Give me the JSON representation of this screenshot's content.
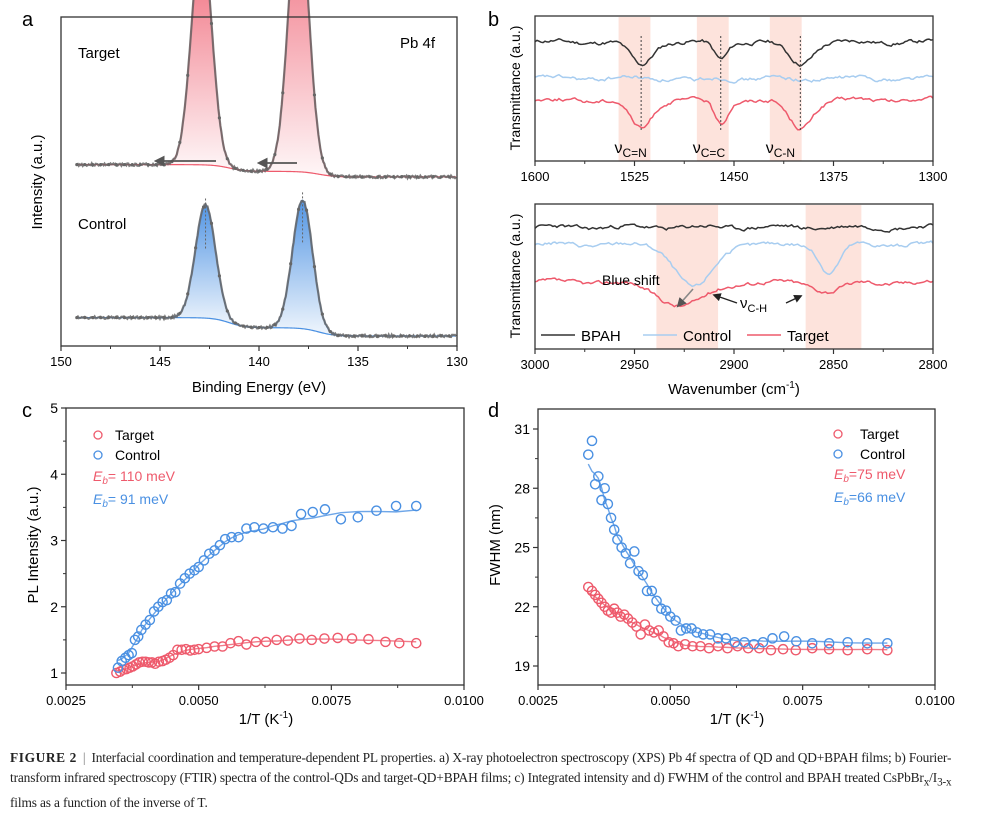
{
  "figure": {
    "caption": {
      "label": "FIGURE 2",
      "separator": "|",
      "text_part1": "Interfacial coordination and temperature-dependent PL properties. a) X-ray photoelectron spectroscopy (XPS) Pb 4f spectra of QD and QD+BPAH films; b) Fourier-transform infrared spectroscopy (FTIR) spectra of the control-QDs and target-QD+BPAH films; c) Integrated intensity and d) FWHM of the control and BPAH treated CsPbBr",
      "sub_x": "x",
      "slash": "/I",
      "sub_3x": "3-x",
      "text_part2": " films as a function of the inverse of T."
    },
    "colors": {
      "target": "#ee5a6c",
      "control": "#4a90e2",
      "control_light": "#a8cdf0",
      "bpah": "#333333",
      "data_points": "#666666",
      "band": "#fde3dc"
    }
  },
  "chart_data": [
    {
      "panel": "a",
      "type": "line",
      "title": "Pb 4f",
      "xlabel": "Binding Energy (eV)",
      "ylabel": "Intensity (a.u.)",
      "xlim": [
        150,
        130
      ],
      "xticks": [
        "150",
        "145",
        "140",
        "135",
        "130"
      ],
      "xtick_values": [
        150,
        145,
        140,
        135,
        130
      ],
      "series": [
        {
          "name": "Target",
          "peaks_eV": [
            142.9,
            138.0
          ],
          "peak_heights": [
            0.75,
            0.88
          ],
          "fwhm_eV": 1.2,
          "baseline_left": 0.56,
          "baseline_right": 0.52,
          "label_text": "Target"
        },
        {
          "name": "Control",
          "peaks_eV": [
            142.7,
            137.8
          ],
          "peak_heights": [
            0.37,
            0.42
          ],
          "fwhm_eV": 1.2,
          "baseline_left": 0.06,
          "baseline_right": 0.0,
          "label_text": "Control"
        }
      ],
      "annotations": [
        "arrows pointing to higher binding energy under Target peaks"
      ]
    },
    {
      "panel": "b-top",
      "type": "line",
      "ylabel": "Transmittance (a.u.)",
      "xlim": [
        1600,
        1300
      ],
      "xticks": [
        "1600",
        "1525",
        "1450",
        "1375",
        "1300"
      ],
      "xtick_values": [
        1600,
        1525,
        1450,
        1375,
        1300
      ],
      "bands": [
        [
          1537,
          1513
        ],
        [
          1478,
          1454
        ],
        [
          1423,
          1399
        ]
      ],
      "band_labels": [
        {
          "main": "ν",
          "sub": "C=N",
          "x": 1525
        },
        {
          "main": "ν",
          "sub": "C=C",
          "x": 1466
        },
        {
          "main": "ν",
          "sub": "C-N",
          "x": 1411
        }
      ],
      "dip_positions": [
        1520,
        1460,
        1400
      ],
      "series": [
        {
          "name": "BPAH",
          "offset": 0.82,
          "dips": [
            [
              1520,
              0.16,
              8
            ],
            [
              1460,
              0.12,
              5
            ],
            [
              1400,
              0.15,
              9
            ]
          ]
        },
        {
          "name": "Control",
          "offset": 0.57,
          "dips": [
            [
              1480,
              0.02,
              6
            ],
            [
              1400,
              0.01,
              6
            ]
          ]
        },
        {
          "name": "Target",
          "offset": 0.42,
          "dips": [
            [
              1520,
              0.2,
              8
            ],
            [
              1460,
              0.17,
              5
            ],
            [
              1400,
              0.19,
              9
            ]
          ]
        }
      ]
    },
    {
      "panel": "b-bottom",
      "type": "line",
      "xlabel": "Wavenumber (cm⁻¹)",
      "xlabel_main": "Wavenumber (cm",
      "xlabel_sup": "-1",
      "xlabel_end": ")",
      "ylabel": "Transmittance (a.u.)",
      "xlim": [
        3000,
        2800
      ],
      "xticks": [
        "3000",
        "2950",
        "2900",
        "2850",
        "2800"
      ],
      "xtick_values": [
        3000,
        2950,
        2900,
        2850,
        2800
      ],
      "bands": [
        [
          2939,
          2908
        ],
        [
          2864,
          2836
        ]
      ],
      "annotations": {
        "blue_shift": "Blue shift",
        "vch_main": "ν",
        "vch_sub": "C-H"
      },
      "series": [
        {
          "name": "BPAH",
          "offset": 0.84,
          "dips": []
        },
        {
          "name": "Control",
          "offset": 0.72,
          "dips": [
            [
              2920,
              0.3,
              9
            ],
            [
              2852,
              0.19,
              5
            ]
          ]
        },
        {
          "name": "Target",
          "offset": 0.46,
          "dips": [
            [
              2926,
              0.16,
              12
            ],
            [
              2852,
              0.06,
              7
            ]
          ]
        }
      ],
      "legend": [
        "BPAH",
        "Control",
        "Target"
      ],
      "legend_position": "bottom-left"
    },
    {
      "panel": "c",
      "type": "scatter",
      "xlabel": "1/T (K⁻¹)",
      "xlabel_main": "1/T (K",
      "xlabel_sup": "-1",
      "xlabel_end": ")",
      "ylabel": "PL Intensity (a.u.)",
      "xlim": [
        0.0025,
        0.01
      ],
      "ylim": [
        0.82,
        5
      ],
      "xticks": [
        "0.0025",
        "0.0050",
        "0.0075",
        "0.0100"
      ],
      "xtick_values": [
        0.0025,
        0.005,
        0.0075,
        0.01
      ],
      "yticks": [
        "1",
        "2",
        "3",
        "4",
        "5"
      ],
      "ytick_values": [
        1,
        2,
        3,
        4,
        5
      ],
      "legend": {
        "target": "Target",
        "control": "Control",
        "eb_target_value": "= 110 meV",
        "eb_control_value": "= 91 meV",
        "eb_symbol": "E",
        "eb_sub": "b"
      },
      "legend_position": "top-left",
      "series": [
        {
          "name": "Target",
          "x": [
            0.00345,
            0.00352,
            0.00358,
            0.00364,
            0.0037,
            0.00376,
            0.00382,
            0.00388,
            0.00394,
            0.004,
            0.00406,
            0.00412,
            0.00418,
            0.00425,
            0.00432,
            0.00438,
            0.00445,
            0.00452,
            0.0046,
            0.00468,
            0.00476,
            0.00484,
            0.00492,
            0.005,
            0.00515,
            0.0053,
            0.00545,
            0.0056,
            0.00575,
            0.0059,
            0.00608,
            0.00627,
            0.00647,
            0.00668,
            0.0069,
            0.00713,
            0.00737,
            0.00762,
            0.00789,
            0.0082,
            0.00852,
            0.00878,
            0.0091
          ],
          "y": [
            1.0,
            1.02,
            1.05,
            1.06,
            1.08,
            1.1,
            1.13,
            1.16,
            1.17,
            1.17,
            1.16,
            1.16,
            1.14,
            1.17,
            1.18,
            1.2,
            1.23,
            1.27,
            1.35,
            1.35,
            1.36,
            1.34,
            1.35,
            1.36,
            1.38,
            1.4,
            1.4,
            1.45,
            1.48,
            1.43,
            1.47,
            1.47,
            1.5,
            1.49,
            1.52,
            1.5,
            1.52,
            1.53,
            1.52,
            1.51,
            1.47,
            1.45,
            1.45
          ]
        },
        {
          "name": "Control",
          "x": [
            0.00348,
            0.00355,
            0.00362,
            0.00368,
            0.00374,
            0.0038,
            0.00386,
            0.00392,
            0.004,
            0.00408,
            0.00416,
            0.00424,
            0.00432,
            0.0044,
            0.00448,
            0.00456,
            0.00465,
            0.00474,
            0.00483,
            0.00492,
            0.005,
            0.0051,
            0.0052,
            0.0053,
            0.0054,
            0.0055,
            0.00562,
            0.00575,
            0.0059,
            0.00605,
            0.00622,
            0.0064,
            0.00658,
            0.00675,
            0.00693,
            0.00715,
            0.00738,
            0.00768,
            0.008,
            0.00835,
            0.00872,
            0.0091
          ],
          "y": [
            1.08,
            1.18,
            1.23,
            1.27,
            1.3,
            1.5,
            1.55,
            1.65,
            1.73,
            1.8,
            1.93,
            2.0,
            2.07,
            2.1,
            2.2,
            2.22,
            2.35,
            2.43,
            2.5,
            2.55,
            2.6,
            2.7,
            2.8,
            2.85,
            2.93,
            3.02,
            3.05,
            3.05,
            3.18,
            3.2,
            3.18,
            3.2,
            3.18,
            3.22,
            3.4,
            3.43,
            3.47,
            3.32,
            3.35,
            3.45,
            3.52,
            3.52
          ]
        }
      ]
    },
    {
      "panel": "d",
      "type": "scatter",
      "xlabel": "1/T (K⁻¹)",
      "xlabel_main": "1/T (K",
      "xlabel_sup": "-1",
      "xlabel_end": ")",
      "ylabel": "FWHM (nm)",
      "xlim": [
        0.0025,
        0.01
      ],
      "ylim": [
        17.8,
        32
      ],
      "xticks": [
        "0.0025",
        "0.0050",
        "0.0075",
        "0.0100"
      ],
      "xtick_values": [
        0.0025,
        0.005,
        0.0075,
        0.01
      ],
      "yticks": [
        "19",
        "22",
        "25",
        "28",
        "31"
      ],
      "ytick_values": [
        19,
        22,
        25,
        28,
        31
      ],
      "legend": {
        "target": "Target",
        "control": "Control",
        "eb_target_value": "=75 meV",
        "eb_control_value": "=66 meV",
        "eb_symbol": "E",
        "eb_sub": "b"
      },
      "legend_position": "top-right",
      "series": [
        {
          "name": "Target",
          "x": [
            0.00345,
            0.00352,
            0.00358,
            0.00364,
            0.0037,
            0.00376,
            0.00382,
            0.00388,
            0.00394,
            0.004,
            0.00406,
            0.00413,
            0.0042,
            0.00428,
            0.00436,
            0.00444,
            0.00452,
            0.0046,
            0.00469,
            0.00478,
            0.00487,
            0.00497,
            0.00506,
            0.00515,
            0.00528,
            0.00542,
            0.00557,
            0.00573,
            0.0059,
            0.00608,
            0.00627,
            0.00647,
            0.00668,
            0.0069,
            0.00713,
            0.00737,
            0.00768,
            0.008,
            0.00835,
            0.00872,
            0.0091
          ],
          "y": [
            23.0,
            22.8,
            22.6,
            22.4,
            22.2,
            22.0,
            21.8,
            21.7,
            21.9,
            21.7,
            21.5,
            21.6,
            21.4,
            21.2,
            21.0,
            20.6,
            21.1,
            20.8,
            20.7,
            20.8,
            20.5,
            20.2,
            20.15,
            20.0,
            20.1,
            20.0,
            20.0,
            19.9,
            20.0,
            19.9,
            20.0,
            19.9,
            19.9,
            19.8,
            19.85,
            19.8,
            19.9,
            19.85,
            19.8,
            19.85,
            19.8
          ]
        },
        {
          "name": "Control",
          "x": [
            0.00345,
            0.00352,
            0.00358,
            0.00364,
            0.0037,
            0.00376,
            0.00382,
            0.00388,
            0.00394,
            0.004,
            0.00408,
            0.00416,
            0.00424,
            0.00432,
            0.0044,
            0.00448,
            0.00456,
            0.00465,
            0.00474,
            0.00483,
            0.00492,
            0.005,
            0.0051,
            0.0052,
            0.0053,
            0.0054,
            0.0055,
            0.00562,
            0.00575,
            0.0059,
            0.00605,
            0.00622,
            0.0064,
            0.00658,
            0.00675,
            0.00693,
            0.00715,
            0.00738,
            0.00768,
            0.008,
            0.00835,
            0.00872,
            0.0091
          ],
          "y": [
            29.7,
            30.4,
            28.2,
            28.6,
            27.4,
            28.0,
            27.2,
            26.5,
            25.9,
            25.4,
            25.0,
            24.7,
            24.2,
            24.8,
            23.8,
            23.6,
            22.8,
            22.8,
            22.3,
            21.9,
            21.8,
            21.5,
            21.3,
            20.8,
            20.9,
            20.9,
            20.7,
            20.6,
            20.6,
            20.4,
            20.4,
            20.2,
            20.2,
            20.1,
            20.2,
            20.4,
            20.5,
            20.25,
            20.15,
            20.15,
            20.2,
            20.15,
            20.15
          ]
        }
      ]
    }
  ],
  "panel_labels": [
    "a",
    "b",
    "c",
    "d"
  ],
  "panel_a_text": {
    "target": "Target",
    "control": "Control",
    "title": "Pb 4f"
  }
}
